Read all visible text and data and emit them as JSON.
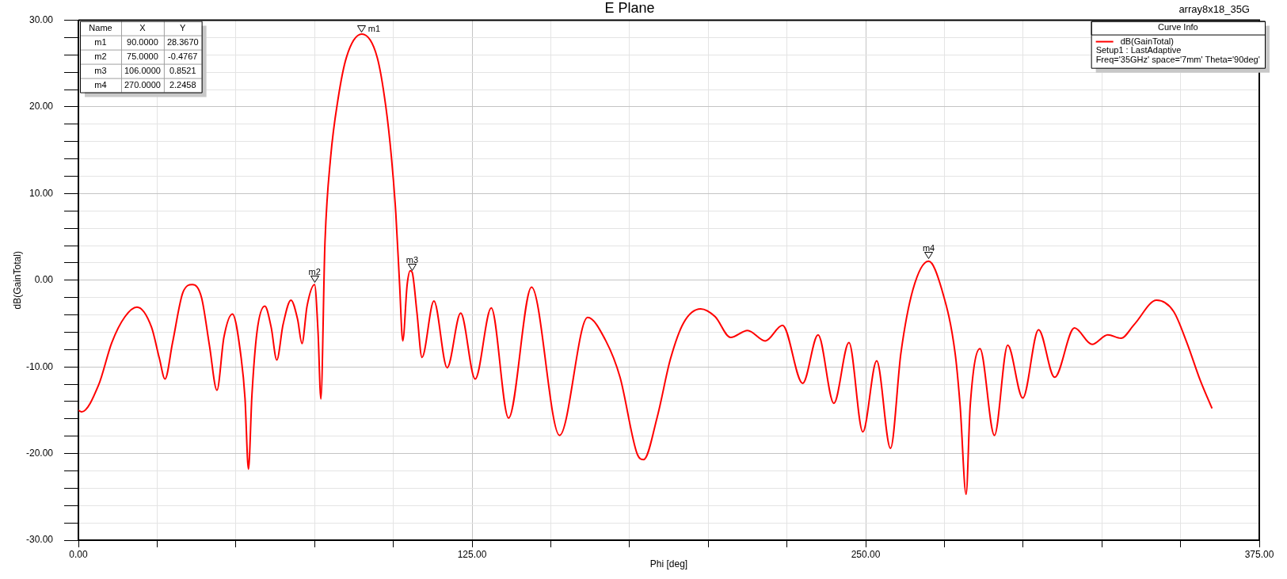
{
  "chart_data": {
    "type": "line",
    "title": "E Plane",
    "subtitle": "array8x18_35G",
    "xlabel": "Phi [deg]",
    "ylabel": "dB(GainTotal)",
    "legend_title": "Curve Info",
    "x": [
      0,
      1,
      6.4,
      10.6,
      14.8,
      18.6,
      23.2,
      25.7,
      27.5,
      29.9,
      33.2,
      36.2,
      39.1,
      41.6,
      44.0,
      46.2,
      48.9,
      51.7,
      52.9,
      54.0,
      55.1,
      56.7,
      59.2,
      61.2,
      63.0,
      65.0,
      67.5,
      69.6,
      71.0,
      72.6,
      75,
      76.1,
      77.0,
      78.3,
      80.1,
      82.4,
      85.1,
      90,
      94.9,
      97.6,
      99.4,
      100.8,
      102.0,
      103.0,
      104.4,
      105.4,
      106,
      107.5,
      109.1,
      112.9,
      117.1,
      121.4,
      126.0,
      131.1,
      136.6,
      143.9,
      152.8,
      161.7,
      167.5,
      172.0,
      177.4,
      179.5,
      183.8,
      188.0,
      192.2,
      197.6,
      202.2,
      207.1,
      212.5,
      218.1,
      223.6,
      230.0,
      234.9,
      239.9,
      244.7,
      249.1,
      253.5,
      257.9,
      261.2,
      265.0,
      270,
      274.2,
      278.4,
      280.0,
      281.9,
      283.2,
      286.3,
      290.9,
      295.1,
      299.9,
      304.9,
      310.0,
      316.3,
      321.9,
      326.9,
      331.1,
      335.3,
      342.4,
      347.8,
      352.0,
      356.2,
      360
    ],
    "series": [
      {
        "name": "dB(GainTotal)",
        "color": "#ff0000",
        "values": [
          -15.0,
          -15.2,
          -12.1,
          -7.2,
          -4.2,
          -3.1,
          -5.4,
          -9.0,
          -11.4,
          -7.2,
          -1.4,
          -0.5,
          -2.0,
          -7.5,
          -12.7,
          -6.6,
          -3.9,
          -9.0,
          -13.6,
          -21.8,
          -13.3,
          -6.0,
          -3.0,
          -5.4,
          -9.2,
          -5.1,
          -2.3,
          -4.5,
          -7.3,
          -3.0,
          -0.5,
          -6.0,
          -13.7,
          4.4,
          14.2,
          20.8,
          25.7,
          28.4,
          25.7,
          20.1,
          14.2,
          7.7,
          -0.5,
          -7.0,
          -0.5,
          1.1,
          0.9,
          -3.7,
          -8.9,
          -2.4,
          -10.1,
          -3.8,
          -11.4,
          -3.2,
          -15.9,
          -0.8,
          -17.9,
          -4.3,
          -7.0,
          -11.2,
          -20.0,
          -20.7,
          -15.8,
          -9.1,
          -4.9,
          -3.3,
          -4.2,
          -6.6,
          -5.8,
          -7.0,
          -5.2,
          -11.9,
          -6.3,
          -14.2,
          -7.2,
          -17.5,
          -9.3,
          -19.4,
          -8.4,
          -1.1,
          2.2,
          -1.1,
          -8.4,
          -14.5,
          -24.7,
          -14.5,
          -7.9,
          -17.9,
          -7.5,
          -13.6,
          -5.7,
          -11.2,
          -5.5,
          -7.4,
          -6.3,
          -6.7,
          -5.1,
          -2.3,
          -3.6,
          -7.2,
          -11.5,
          -14.8
        ]
      }
    ],
    "xlim": [
      0,
      375
    ],
    "ylim": [
      -30,
      30
    ],
    "xticks": [
      {
        "value": 0,
        "label": "0.00"
      },
      {
        "value": 25,
        "label": null
      },
      {
        "value": 50,
        "label": null
      },
      {
        "value": 75,
        "label": null
      },
      {
        "value": 100,
        "label": null
      },
      {
        "value": 125,
        "label": "125.00"
      },
      {
        "value": 150,
        "label": null
      },
      {
        "value": 175,
        "label": null
      },
      {
        "value": 200,
        "label": null
      },
      {
        "value": 225,
        "label": null
      },
      {
        "value": 250,
        "label": "250.00"
      },
      {
        "value": 275,
        "label": null
      },
      {
        "value": 300,
        "label": null
      },
      {
        "value": 325,
        "label": null
      },
      {
        "value": 350,
        "label": null
      },
      {
        "value": 375,
        "label": "375.00"
      }
    ],
    "yticks": [
      {
        "value": -30,
        "label": "-30.00"
      },
      {
        "value": -28,
        "label": null
      },
      {
        "value": -26,
        "label": null
      },
      {
        "value": -24,
        "label": null
      },
      {
        "value": -22,
        "label": null
      },
      {
        "value": -20,
        "label": "-20.00"
      },
      {
        "value": -18,
        "label": null
      },
      {
        "value": -16,
        "label": null
      },
      {
        "value": -14,
        "label": null
      },
      {
        "value": -12,
        "label": null
      },
      {
        "value": -10,
        "label": "-10.00"
      },
      {
        "value": -8,
        "label": null
      },
      {
        "value": -6,
        "label": null
      },
      {
        "value": -4,
        "label": null
      },
      {
        "value": -2,
        "label": null
      },
      {
        "value": 0,
        "label": "0.00"
      },
      {
        "value": 2,
        "label": null
      },
      {
        "value": 4,
        "label": null
      },
      {
        "value": 6,
        "label": null
      },
      {
        "value": 8,
        "label": null
      },
      {
        "value": 10,
        "label": "10.00"
      },
      {
        "value": 12,
        "label": null
      },
      {
        "value": 14,
        "label": null
      },
      {
        "value": 16,
        "label": null
      },
      {
        "value": 18,
        "label": null
      },
      {
        "value": 20,
        "label": "20.00"
      },
      {
        "value": 22,
        "label": null
      },
      {
        "value": 24,
        "label": null
      },
      {
        "value": 26,
        "label": null
      },
      {
        "value": 28,
        "label": null
      },
      {
        "value": 30,
        "label": "30.00"
      }
    ],
    "grid": true,
    "legend": "top right",
    "annotations": [
      "Setup1 : LastAdaptive",
      "Freq='35GHz' space='7mm' Theta='90deg'",
      "Name",
      "X",
      "Y",
      "m1",
      "90.0000",
      "28.3670",
      "m2",
      "75.0000",
      "-0.4767",
      "m3",
      "106.0000",
      "0.8521",
      "m4",
      "270.0000",
      "2.2458",
      {
        "text": "m1",
        "x": 90,
        "y": 28.367
      },
      {
        "text": "m2",
        "x": 75,
        "y": -0.4767
      },
      {
        "text": "m3",
        "x": 106,
        "y": 0.8521
      },
      {
        "text": "m4",
        "x": 270,
        "y": 2.2458
      }
    ]
  }
}
